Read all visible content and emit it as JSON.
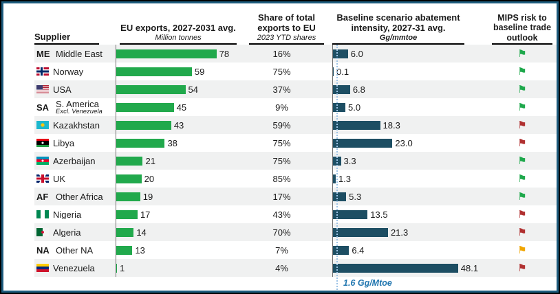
{
  "header": {
    "col_supplier": "Supplier",
    "col_exports_title": "EU exports, 2027-2031 avg.",
    "col_exports_subtitle": "Million tonnes",
    "col_share_title": "Share of total exports to EU",
    "col_share_subtitle": "2023 YTD shares",
    "col_abatement_title": "Baseline scenario abatement intensity, 2027-31 avg.",
    "col_abatement_subtitle": "Gg/mmtoe",
    "col_mips_title": "MIPS risk to baseline trade outlook"
  },
  "colors": {
    "bar-green": "#21a94c",
    "bar-blue": "#1d4e63",
    "risk-green": "#1fa84c",
    "risk-red": "#b03030",
    "risk-yellow": "#f0a500",
    "frame-border": "#1d5c7e",
    "ref-line": "#9dc3e6",
    "ref-label": "#2277b0",
    "row-stripe": "#f0f1f1"
  },
  "chart_data": {
    "type": "bar",
    "categories": [
      "Middle East",
      "Norway",
      "USA",
      "S. America",
      "Kazakhstan",
      "Libya",
      "Azerbaijan",
      "UK",
      "Other Africa",
      "Nigeria",
      "Algeria",
      "Other NA",
      "Venezuela"
    ],
    "series": [
      {
        "name": "EU exports, 2027-2031 avg. (Million tonnes)",
        "values": [
          78,
          59,
          54,
          45,
          43,
          38,
          21,
          20,
          19,
          17,
          14,
          13,
          1
        ]
      },
      {
        "name": "Share of total exports to EU (2023 YTD shares, %)",
        "values": [
          16,
          75,
          37,
          9,
          59,
          75,
          75,
          85,
          17,
          43,
          70,
          7,
          4
        ]
      },
      {
        "name": "Baseline scenario abatement intensity, 2027-31 avg. (Gg/mmtoe)",
        "values": [
          6.0,
          0.1,
          6.8,
          5.0,
          18.3,
          23.0,
          3.3,
          1.3,
          5.3,
          13.5,
          21.3,
          6.4,
          48.1
        ]
      }
    ],
    "risk_flags": [
      "green",
      "green",
      "green",
      "green",
      "red",
      "red",
      "green",
      "green",
      "green",
      "red",
      "red",
      "yellow",
      "red"
    ],
    "reference_line": {
      "value": 1.6,
      "label": "1.6 Gg/Mtoe"
    },
    "rows": [
      {
        "name": "Middle East",
        "flag": "abbr",
        "abbr": "ME",
        "exports": 78,
        "share": "16%",
        "abatement": 6.0,
        "abatement_label": "6.0",
        "risk": "green"
      },
      {
        "name": "Norway",
        "flag": "norway",
        "exports": 59,
        "share": "75%",
        "abatement": 0.1,
        "abatement_label": "0.1",
        "risk": "green"
      },
      {
        "name": "USA",
        "flag": "usa",
        "exports": 54,
        "share": "37%",
        "abatement": 6.8,
        "abatement_label": "6.8",
        "risk": "green"
      },
      {
        "name": "S. America",
        "subnote": "Excl. Venezuela",
        "flag": "abbr",
        "abbr": "SA",
        "exports": 45,
        "share": "9%",
        "abatement": 5.0,
        "abatement_label": "5.0",
        "risk": "green"
      },
      {
        "name": "Kazakhstan",
        "flag": "kazakhstan",
        "exports": 43,
        "share": "59%",
        "abatement": 18.3,
        "abatement_label": "18.3",
        "risk": "red"
      },
      {
        "name": "Libya",
        "flag": "libya",
        "exports": 38,
        "share": "75%",
        "abatement": 23.0,
        "abatement_label": "23.0",
        "risk": "red"
      },
      {
        "name": "Azerbaijan",
        "flag": "azerbaijan",
        "exports": 21,
        "share": "75%",
        "abatement": 3.3,
        "abatement_label": "3.3",
        "risk": "green"
      },
      {
        "name": "UK",
        "flag": "uk",
        "exports": 20,
        "share": "85%",
        "abatement": 1.3,
        "abatement_label": "1.3",
        "risk": "green"
      },
      {
        "name": "Other Africa",
        "flag": "abbr",
        "abbr": "AF",
        "exports": 19,
        "share": "17%",
        "abatement": 5.3,
        "abatement_label": "5.3",
        "risk": "green"
      },
      {
        "name": "Nigeria",
        "flag": "nigeria",
        "exports": 17,
        "share": "43%",
        "abatement": 13.5,
        "abatement_label": "13.5",
        "risk": "red"
      },
      {
        "name": "Algeria",
        "flag": "algeria",
        "exports": 14,
        "share": "70%",
        "abatement": 21.3,
        "abatement_label": "21.3",
        "risk": "red"
      },
      {
        "name": "Other NA",
        "flag": "abbr",
        "abbr": "NA",
        "exports": 13,
        "share": "7%",
        "abatement": 6.4,
        "abatement_label": "6.4",
        "risk": "yellow"
      },
      {
        "name": "Venezuela",
        "flag": "venezuela",
        "exports": 1,
        "share": "4%",
        "abatement": 48.1,
        "abatement_label": "48.1",
        "risk": "red"
      }
    ]
  }
}
